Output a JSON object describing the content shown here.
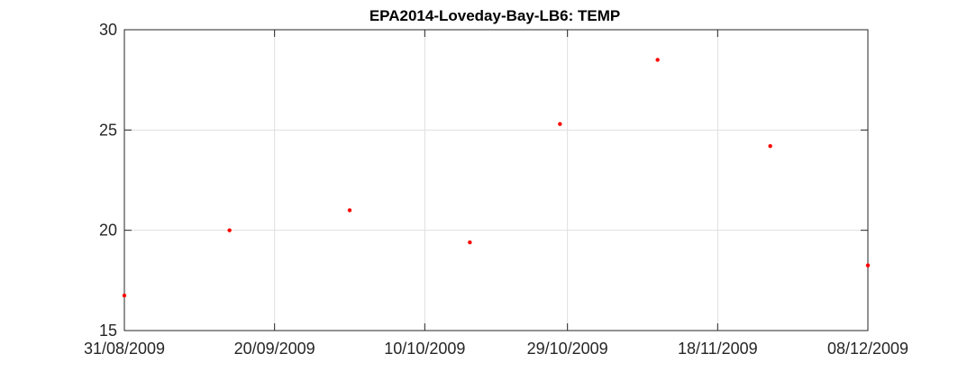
{
  "chart_data": {
    "type": "scatter",
    "title": "EPA2014-Loveday-Bay-LB6: TEMP",
    "xlabel": "",
    "ylabel": "",
    "xlim": [
      "2009-08-31",
      "2009-12-08"
    ],
    "ylim": [
      15,
      30
    ],
    "x_ticks": [
      "2009-08-31",
      "2009-09-20",
      "2009-10-10",
      "2009-10-29",
      "2009-11-18",
      "2009-12-08"
    ],
    "x_tick_labels": [
      "31/08/2009",
      "20/09/2009",
      "10/10/2009",
      "29/10/2009",
      "18/11/2009",
      "08/12/2009"
    ],
    "y_ticks": [
      15,
      20,
      25,
      30
    ],
    "y_tick_labels": [
      "15",
      "20",
      "25",
      "30"
    ],
    "grid": true,
    "marker_color": "#ff0000",
    "series": [
      {
        "x": [
          "2009-08-31",
          "2009-09-14",
          "2009-09-30",
          "2009-10-16",
          "2009-10-28",
          "2009-11-10",
          "2009-11-25",
          "2009-12-08"
        ],
        "y": [
          16.75,
          20.0,
          21.0,
          19.4,
          25.3,
          28.5,
          24.2,
          18.25
        ]
      }
    ]
  }
}
